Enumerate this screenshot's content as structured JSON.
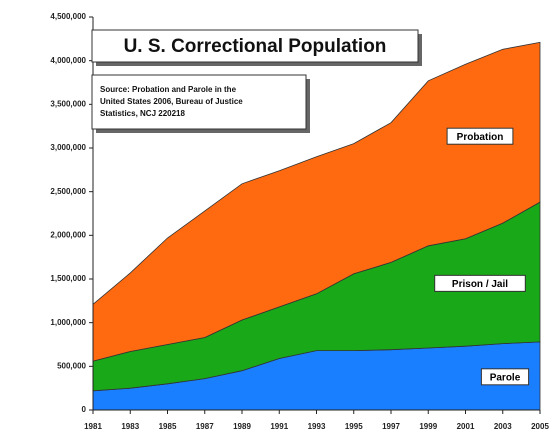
{
  "chart_data": {
    "type": "stacked_area",
    "title": "U. S. Correctional Population",
    "source": [
      "Source: Probation and Parole in the",
      "United States 2006, Bureau of Justice",
      "Statistics, NCJ 220218"
    ],
    "x": [
      1981,
      1983,
      1985,
      1987,
      1989,
      1991,
      1993,
      1995,
      1997,
      1999,
      2001,
      2003,
      2005
    ],
    "xlim": [
      1981,
      2005
    ],
    "xticks": [
      1981,
      1983,
      1985,
      1987,
      1989,
      1991,
      1993,
      1995,
      1997,
      1999,
      2001,
      2003,
      2005
    ],
    "ylim": [
      0,
      4500000
    ],
    "yticks": [
      0,
      {
        "value": 500000,
        "label": "500,000"
      },
      {
        "value": 1000000,
        "label": "1,000,000"
      },
      {
        "value": 1500000,
        "label": "1,500,000"
      },
      {
        "value": 2000000,
        "label": "2,000,000"
      },
      {
        "value": 2500000,
        "label": "2,500,000"
      },
      {
        "value": 3000000,
        "label": "3,000,000"
      },
      {
        "value": 3500000,
        "label": "3,500,000"
      },
      {
        "value": 4000000,
        "label": "4,000,000"
      },
      {
        "value": 4500000,
        "label": "4,500,000"
      }
    ],
    "series": [
      {
        "name": "Parole",
        "color": "#1a7fff",
        "values": [
          220000,
          250000,
          300000,
          360000,
          450000,
          590000,
          680000,
          680000,
          690000,
          710000,
          730000,
          760000,
          780000
        ]
      },
      {
        "name": "Prison / Jail",
        "color": "#18a818",
        "values": [
          340000,
          420000,
          450000,
          470000,
          580000,
          590000,
          650000,
          880000,
          1000000,
          1170000,
          1230000,
          1380000,
          1600000
        ]
      },
      {
        "name": "Probation",
        "color": "#ff6a10",
        "values": [
          650000,
          900000,
          1220000,
          1450000,
          1560000,
          1560000,
          1570000,
          1490000,
          1600000,
          1890000,
          2000000,
          1990000,
          1830000
        ]
      }
    ]
  }
}
